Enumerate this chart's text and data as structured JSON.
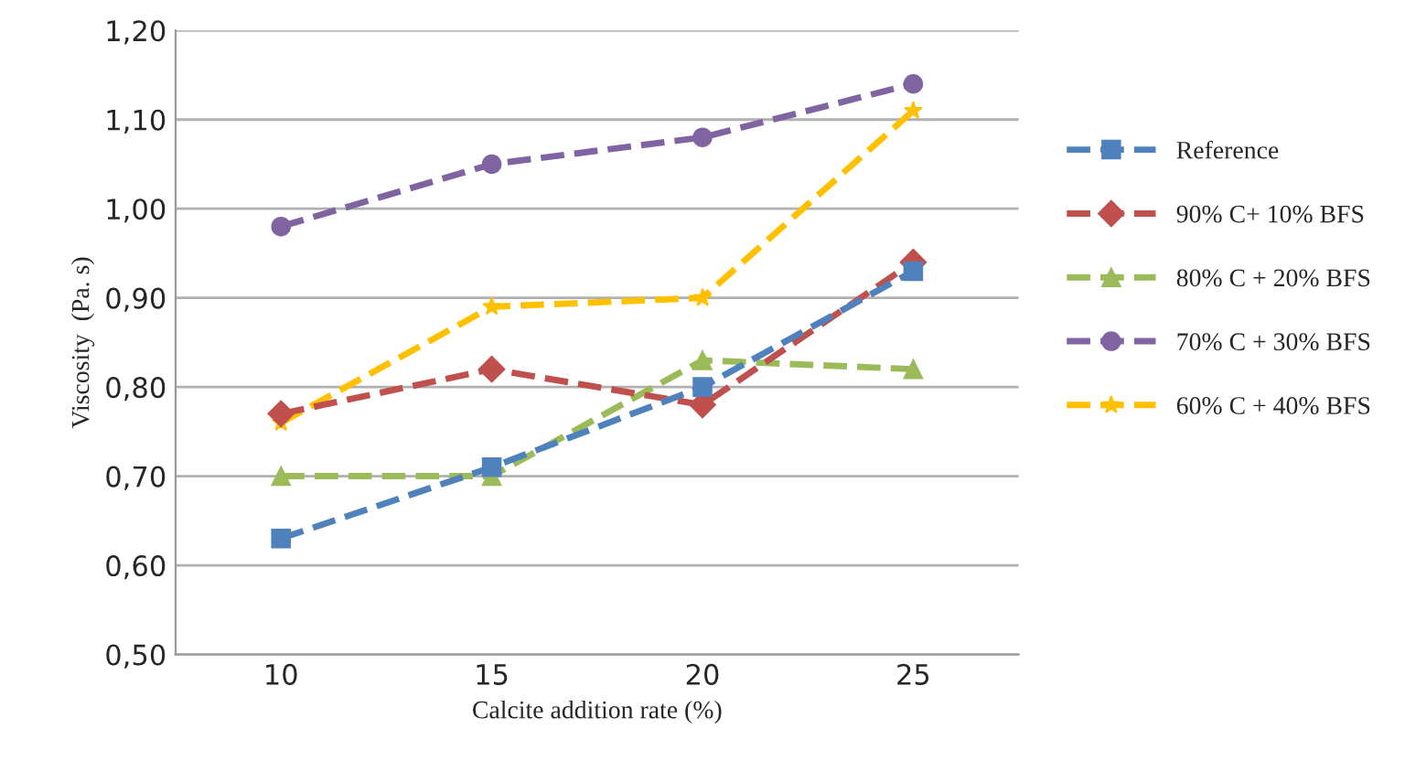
{
  "chart_data": {
    "type": "line",
    "xlabel": "Calcite addition rate (%)",
    "ylabel": "Viscosity  (Pa. s)",
    "categories": [
      "10",
      "15",
      "20",
      "25"
    ],
    "series": [
      {
        "name": "Reference",
        "color": "#4f81bd",
        "values": [
          0.63,
          0.71,
          0.8,
          0.93
        ],
        "marker": "square",
        "line_style": "dashed"
      },
      {
        "name": "90% C+ 10% BFS",
        "color": "#c0504d",
        "values": [
          0.77,
          0.82,
          0.78,
          0.94
        ],
        "marker": "diamond",
        "line_style": "dashed"
      },
      {
        "name": "80% C + 20% BFS",
        "color": "#9bbb59",
        "values": [
          0.7,
          0.7,
          0.83,
          0.82
        ],
        "marker": "triangle",
        "line_style": "dashed"
      },
      {
        "name": "70% C + 30% BFS",
        "color": "#8064a2",
        "values": [
          0.98,
          1.05,
          1.08,
          1.14
        ],
        "marker": "circle",
        "line_style": "dashed"
      },
      {
        "name": "60% C + 40% BFS",
        "color": "#ffc000",
        "values": [
          0.76,
          0.89,
          0.9,
          1.11
        ],
        "marker": "star",
        "line_style": "dashed"
      }
    ],
    "ylim": [
      0.5,
      1.2
    ],
    "yticks": [
      {
        "value": 0.5,
        "label": "0,50"
      },
      {
        "value": 0.6,
        "label": "0,60"
      },
      {
        "value": 0.7,
        "label": "0,70"
      },
      {
        "value": 0.8,
        "label": "0,80"
      },
      {
        "value": 0.9,
        "label": "0,90"
      },
      {
        "value": 1.0,
        "label": "1,00"
      },
      {
        "value": 1.1,
        "label": "1,10"
      },
      {
        "value": 1.2,
        "label": "1,20"
      }
    ],
    "grid": "y",
    "legend": "right"
  }
}
